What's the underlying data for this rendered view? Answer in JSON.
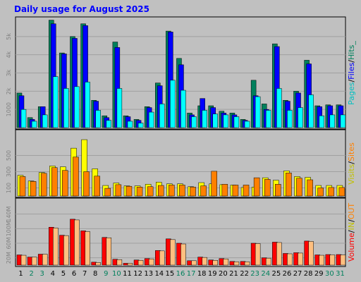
{
  "chart_data": {
    "type": "bar",
    "title": "Daily usage for August 2025",
    "categories": [
      "1",
      "2",
      "3",
      "4",
      "5",
      "6",
      "7",
      "8",
      "9",
      "10",
      "11",
      "12",
      "13",
      "14",
      "15",
      "16",
      "17",
      "18",
      "19",
      "20",
      "21",
      "22",
      "23",
      "24",
      "25",
      "26",
      "27",
      "28",
      "29",
      "30",
      "31"
    ],
    "weekend_days": [
      "2",
      "3",
      "9",
      "10",
      "16",
      "17",
      "23",
      "24",
      "30",
      "31"
    ],
    "colors": {
      "background": "#c0c0c0",
      "title": "#0000ff",
      "hits": "#00805c",
      "files": "#0000ff",
      "pages": "#00ffff",
      "visits": "#ffff00",
      "sites": "#ff8000",
      "volume": "#ff0000",
      "in": "#ff8000",
      "out": "#ffc080",
      "weekend_label": "#00805c",
      "weekday_label": "#000000"
    },
    "panels": [
      {
        "id": "hits",
        "ylim": [
          0,
          6000
        ],
        "ticks": [
          {
            "value": 1000,
            "label": "1000"
          },
          {
            "value": 2000,
            "label": "2k"
          },
          {
            "value": 3000,
            "label": "3k"
          },
          {
            "value": 4000,
            "label": "4k"
          },
          {
            "value": 5000,
            "label": "5k"
          }
        ],
        "legend": [
          {
            "text": "Pages",
            "color": "#00c0c0"
          },
          {
            "text": "/",
            "color": "#000000"
          },
          {
            "text": "Files",
            "color": "#0000ff"
          },
          {
            "text": "/",
            "color": "#000000"
          },
          {
            "text": "Hits_",
            "color": "#00805c"
          }
        ],
        "series": [
          {
            "name": "Hits",
            "values": [
              1900,
              550,
              1150,
              5900,
              4100,
              5000,
              5700,
              1500,
              650,
              4700,
              650,
              450,
              1150,
              2450,
              5300,
              3800,
              800,
              1200,
              1200,
              900,
              800,
              450,
              2600,
              1300,
              4600,
              1500,
              2000,
              3700,
              1200,
              1250,
              1250
            ]
          },
          {
            "name": "Files",
            "values": [
              1750,
              450,
              1150,
              5700,
              4050,
              4900,
              5600,
              1450,
              550,
              4400,
              600,
              400,
              1100,
              2300,
              5250,
              3450,
              700,
              1600,
              1100,
              800,
              700,
              400,
              1750,
              1000,
              4450,
              1450,
              1900,
              3500,
              1150,
              1200,
              1200
            ]
          },
          {
            "name": "Pages",
            "values": [
              1000,
              350,
              700,
              2800,
              2150,
              2250,
              2500,
              950,
              400,
              2150,
              350,
              250,
              850,
              1300,
              2600,
              2050,
              600,
              950,
              750,
              700,
              600,
              350,
              1700,
              950,
              2150,
              950,
              1100,
              1800,
              650,
              700,
              700
            ]
          }
        ]
      },
      {
        "id": "visits",
        "ylim": [
          0,
          800
        ],
        "ticks": [
          {
            "value": 100,
            "label": "100"
          },
          {
            "value": 300,
            "label": "300"
          },
          {
            "value": 500,
            "label": "500"
          }
        ],
        "legend": [
          {
            "text": "Visits",
            "color": "#c0c000"
          },
          {
            "text": "/",
            "color": "#000000"
          },
          {
            "text": "Sites",
            "color": "#ff8000"
          }
        ],
        "series": [
          {
            "name": "Visits",
            "values": [
              255,
              185,
              290,
              370,
              360,
              590,
              695,
              335,
              130,
              160,
              125,
              125,
              145,
              170,
              150,
              150,
              115,
              165,
              150,
              140,
              135,
              105,
              110,
              225,
              195,
              310,
              240,
              230,
              130,
              130,
              130
            ]
          },
          {
            "name": "Sites",
            "values": [
              240,
              180,
              280,
              350,
              315,
              480,
              300,
              245,
              95,
              140,
              120,
              110,
              115,
              130,
              135,
              135,
              110,
              125,
              305,
              145,
              135,
              135,
              225,
              205,
              145,
              285,
              220,
              200,
              100,
              105,
              105
            ]
          }
        ]
      },
      {
        "id": "volume",
        "ylim": [
          0,
          180
        ],
        "ticks": [
          {
            "value": 20,
            "label": "20M"
          },
          {
            "value": 60,
            "label": "60M"
          },
          {
            "value": 100,
            "label": "100M"
          },
          {
            "value": 140,
            "label": "140M"
          }
        ],
        "legend": [
          {
            "text": "Volume",
            "color": "#ff0000"
          },
          {
            "text": "/",
            "color": "#000000"
          },
          {
            "text": "IN",
            "color": "#c0c000"
          },
          {
            "text": "/",
            "color": "#000000"
          },
          {
            "text": "OUT",
            "color": "#ff8000"
          }
        ],
        "series": [
          {
            "name": "Volume",
            "values": [
              28,
              22,
              30,
              104,
              82,
              126,
              94,
              8,
              76,
              16,
              5,
              14,
              18,
              40,
              72,
              60,
              12,
              22,
              14,
              18,
              10,
              10,
              60,
              20,
              63,
              32,
              34,
              66,
              28,
              29,
              29
            ]
          },
          {
            "name": "IN",
            "values": [
              0,
              0,
              0,
              0,
              0,
              0,
              0,
              0,
              0,
              0,
              0,
              0,
              0,
              0,
              0,
              0,
              0,
              0,
              0,
              0,
              0,
              0,
              0,
              0,
              0,
              0,
              0,
              0,
              0,
              0,
              0
            ]
          },
          {
            "name": "OUT",
            "values": [
              27,
              22,
              30,
              102,
              81,
              124,
              92,
              7,
              75,
              15,
              5,
              13,
              17,
              39,
              70,
              58,
              12,
              21,
              13,
              17,
              9,
              9,
              59,
              19,
              62,
              31,
              33,
              65,
              27,
              28,
              28
            ]
          }
        ]
      }
    ]
  }
}
